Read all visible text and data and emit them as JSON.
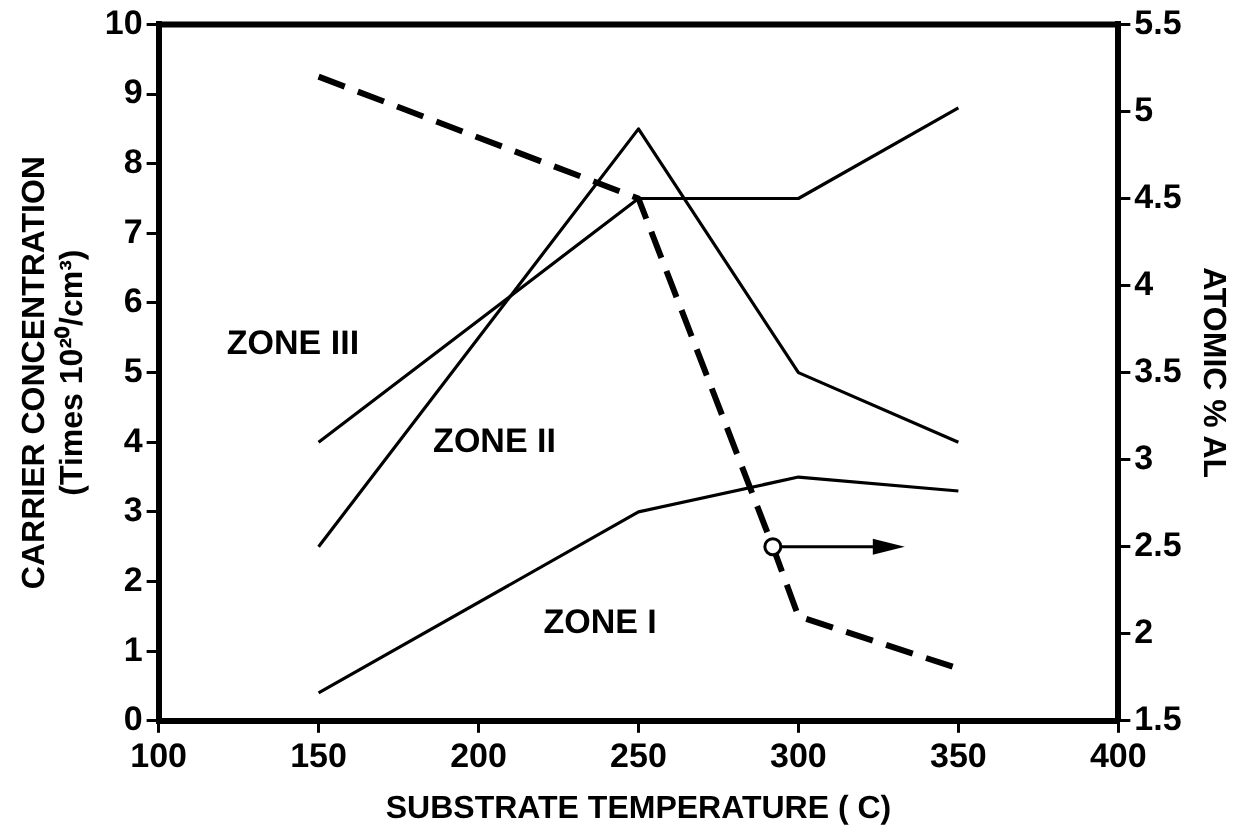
{
  "chart_data": {
    "type": "line",
    "xlabel": "SUBSTRATE TEMPERATURE ( C)",
    "ylabel": [
      "CARRIER CONCENTRATION",
      "(Times 10²⁰/cm³)"
    ],
    "y2label": "ATOMIC % AL",
    "x": [
      150,
      250,
      300,
      350
    ],
    "series": [
      {
        "color": "#000000",
        "values": [
          0.4,
          3.0,
          3.5,
          3.3
        ]
      },
      {
        "color": "#000000",
        "values": [
          2.5,
          8.5,
          5.0,
          4.0
        ]
      },
      {
        "color": "#000000",
        "values": [
          4.0,
          7.5,
          7.5,
          8.8
        ]
      },
      {
        "color": "#000000",
        "axis": "y2",
        "line_style": "dashed",
        "x": [
          150,
          250,
          292,
          300,
          350
        ],
        "values": [
          5.2,
          4.5,
          2.5,
          2.1,
          1.8
        ]
      }
    ],
    "xlim": [
      100,
      400
    ],
    "xticks": [
      100,
      150,
      200,
      250,
      300,
      350,
      400
    ],
    "ylim": [
      0,
      10
    ],
    "yticks": [
      0,
      1,
      2,
      3,
      4,
      5,
      6,
      7,
      8,
      9,
      10
    ],
    "y2lim": [
      1.5,
      5.5
    ],
    "y2ticks": [
      1.5,
      2,
      2.5,
      3,
      3.5,
      4,
      4.5,
      5,
      5.5
    ],
    "annotations": [
      "ZONE III",
      "ZONE II",
      "ZONE I"
    ],
    "legend": false,
    "marker": "none",
    "grid": false
  }
}
